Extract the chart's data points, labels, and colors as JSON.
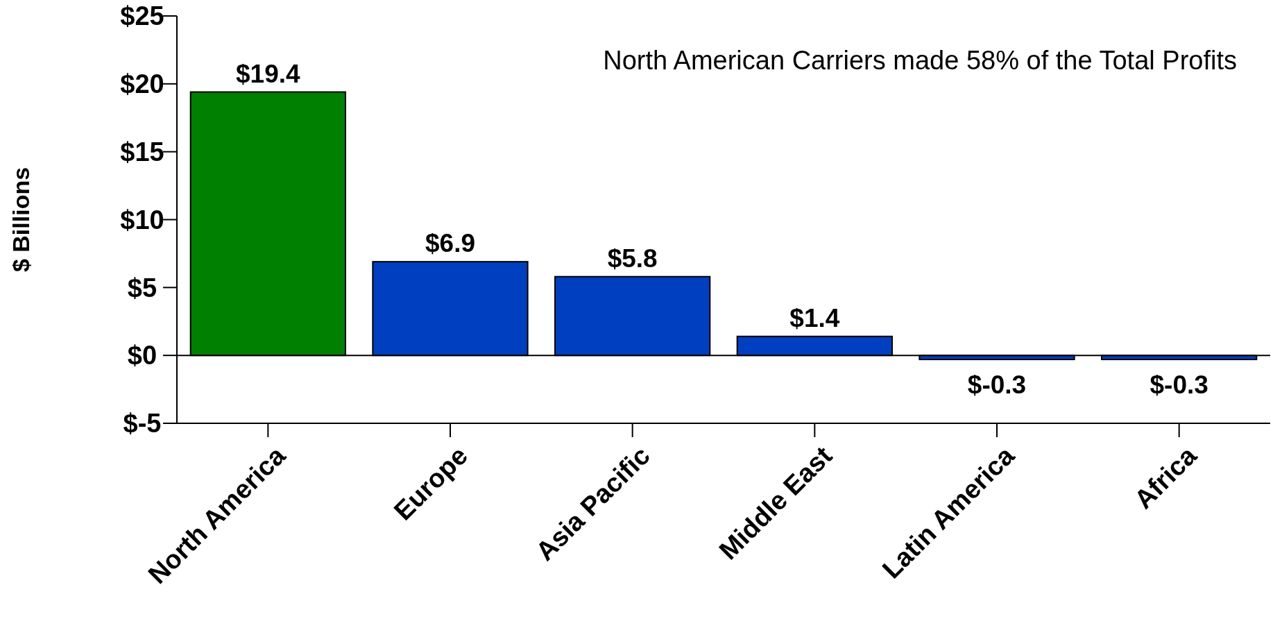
{
  "chart_data": {
    "type": "bar",
    "ylabel": "$ Billions",
    "categories": [
      "North America",
      "Europe",
      "Asia Pacific",
      "Middle East",
      "Latin America",
      "Africa"
    ],
    "values": [
      19.4,
      6.9,
      5.8,
      1.4,
      -0.3,
      -0.3
    ],
    "colors": [
      "#008000",
      "#0040c0",
      "#0040c0",
      "#0040c0",
      "#0040c0",
      "#0040c0"
    ],
    "value_labels": [
      "$19.4",
      "$6.9",
      "$5.8",
      "$1.4",
      "$-0.3",
      "$-0.3"
    ],
    "ylim": [
      -5,
      25
    ],
    "yticks": [
      {
        "value": -5,
        "label": "$-5"
      },
      {
        "value": 0,
        "label": "$0"
      },
      {
        "value": 5,
        "label": "$5"
      },
      {
        "value": 10,
        "label": "$10"
      },
      {
        "value": 15,
        "label": "$15"
      },
      {
        "value": 20,
        "label": "$20"
      },
      {
        "value": 25,
        "label": "$25"
      }
    ],
    "ref_lines": [
      {
        "axis": "y",
        "value": 0,
        "color": "#000000"
      }
    ],
    "annotations": [
      "North American Carriers made 58% of the Total Profits"
    ]
  }
}
